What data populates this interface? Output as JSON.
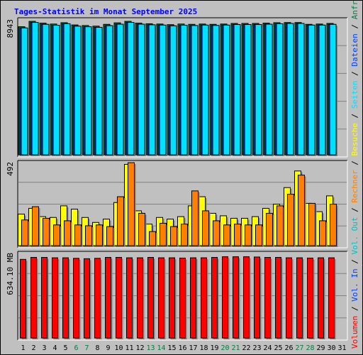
{
  "chart_data": {
    "type": "bar",
    "title": "Tages-Statistik im Monat September 2025",
    "categories": [
      "1",
      "2",
      "3",
      "4",
      "5",
      "6",
      "7",
      "8",
      "9",
      "10",
      "11",
      "12",
      "13",
      "14",
      "15",
      "16",
      "17",
      "18",
      "19",
      "20",
      "21",
      "22",
      "23",
      "24",
      "25",
      "26",
      "27",
      "28",
      "29",
      "30",
      "31"
    ],
    "weekend_days": [
      "6",
      "7",
      "13",
      "14",
      "20",
      "21",
      "27",
      "28"
    ],
    "panels": [
      {
        "id": "requests",
        "scale_label": "8943",
        "max": 8943,
        "series": [
          {
            "name": "Anfragen",
            "color": "#008040",
            "values": [
              8580,
              8940,
              8820,
              8760,
              8850,
              8700,
              8660,
              8620,
              8740,
              8840,
              8940,
              8820,
              8780,
              8760,
              8720,
              8760,
              8740,
              8760,
              8740,
              8760,
              8800,
              8800,
              8800,
              8820,
              8850,
              8860,
              8860,
              8740,
              8760,
              8800,
              null
            ]
          },
          {
            "name": "Dateien",
            "color": "#0040ff",
            "values": [
              8500,
              8870,
              8740,
              8680,
              8780,
              8620,
              8580,
              8540,
              8650,
              8750,
              8870,
              8750,
              8710,
              8690,
              8640,
              8680,
              8660,
              8690,
              8670,
              8690,
              8730,
              8730,
              8730,
              8750,
              8780,
              8800,
              8800,
              8690,
              8690,
              8740,
              null
            ]
          },
          {
            "name": "Seiten",
            "color": "#00e0ff",
            "values": [
              8500,
              8870,
              8740,
              8680,
              8780,
              8620,
              8580,
              8540,
              8650,
              8750,
              8870,
              8750,
              8710,
              8690,
              8640,
              8680,
              8660,
              8690,
              8670,
              8690,
              8730,
              8730,
              8730,
              8750,
              8780,
              8800,
              8800,
              8690,
              8690,
              8740,
              null
            ]
          }
        ]
      },
      {
        "id": "visits",
        "scale_label": "492",
        "max": 492,
        "series": [
          {
            "name": "Besuche",
            "color": "#ffff00",
            "values": [
              190,
              225,
              175,
              170,
              240,
              220,
              170,
              140,
              160,
              260,
              490,
              210,
              130,
              170,
              160,
              175,
              240,
              295,
              195,
              180,
              165,
              165,
              175,
              225,
              250,
              350,
              450,
              255,
              205,
              300,
              null
            ]
          },
          {
            "name": "Rechner",
            "color": "#ff8000",
            "values": [
              155,
              235,
              165,
              125,
              150,
              125,
              120,
              125,
              115,
              295,
              500,
              195,
              85,
              135,
              115,
              130,
              330,
              210,
              150,
              125,
              130,
              125,
              125,
              195,
              240,
              310,
              425,
              255,
              150,
              250,
              null
            ]
          }
        ]
      },
      {
        "id": "volume",
        "scale_label": "634.10 MB",
        "max": 634.1,
        "series": [
          {
            "name": "Vol. Out",
            "color": "#00c0c0",
            "values": [
              null,
              null,
              null,
              null,
              null,
              null,
              null,
              null,
              null,
              null,
              null,
              null,
              null,
              null,
              null,
              null,
              null,
              null,
              null,
              null,
              null,
              null,
              null,
              null,
              null,
              null,
              null,
              null,
              null,
              null,
              null
            ]
          },
          {
            "name": "Vol. In",
            "color": "#0040ff",
            "values": [
              null,
              null,
              null,
              null,
              null,
              null,
              null,
              null,
              null,
              null,
              null,
              null,
              null,
              null,
              null,
              null,
              null,
              null,
              null,
              null,
              null,
              null,
              null,
              null,
              null,
              null,
              null,
              null,
              null,
              null,
              null
            ]
          },
          {
            "name": "Volumen",
            "color": "#ff0000",
            "values": [
              600,
              615,
              615,
              612,
              612,
              608,
              605,
              608,
              615,
              615,
              612,
              612,
              615,
              612,
              612,
              610,
              612,
              612,
              615,
              620,
              620,
              620,
              618,
              615,
              615,
              612,
              612,
              610,
              612,
              612,
              null
            ]
          }
        ]
      }
    ],
    "legend": [
      {
        "text": "Anfragen",
        "color": "#008040"
      },
      {
        "text": "Dateien",
        "color": "#0040ff"
      },
      {
        "text": "Seiten",
        "color": "#00e0ff"
      },
      {
        "text": "Besuche",
        "color": "#ffff00"
      },
      {
        "text": "Rechner",
        "color": "#ff8000"
      },
      {
        "text": "Vol. Out",
        "color": "#00c0c0"
      },
      {
        "text": "Vol. In",
        "color": "#0040ff"
      },
      {
        "text": "Volumen",
        "color": "#ff0000"
      }
    ],
    "legend_separator": "/",
    "colors": {
      "background": "#c0c0c0",
      "title": "#0000ff",
      "gridline": "#808080",
      "weekday_label": "#000000",
      "weekend_label": "#008040"
    },
    "grid": true,
    "legend_placement": "right, vertical"
  }
}
